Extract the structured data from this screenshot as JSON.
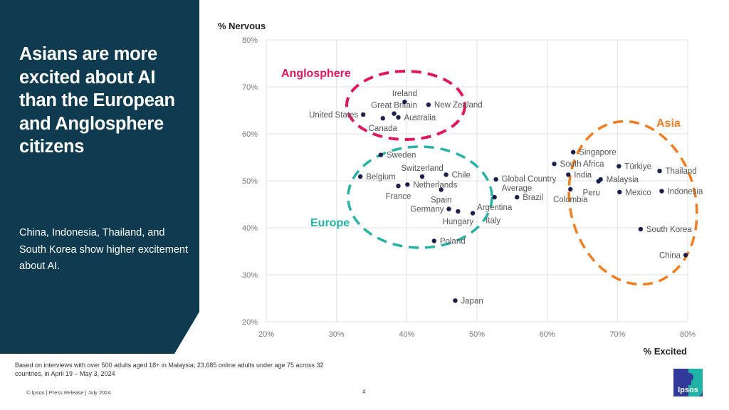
{
  "slide": {
    "title": "Asians are more excited about AI than the European and Anglosphere citizens",
    "subtitle": "China, Indonesia, Thailand, and South Korea show higher excitement about AI.",
    "note": "Based on interviews with over 500 adults aged 18+ in Malaysia; 23,685 online adults under age 75 across 32 countries, in April 19 – May 3, 2024",
    "footer": "© Ipsos | Press Release | July 2024",
    "page_number": "4",
    "logo_text": "Ipsos"
  },
  "chart_data": {
    "type": "scatter",
    "xlabel": "% Excited",
    "ylabel": "% Nervous",
    "xlim": [
      20,
      80
    ],
    "ylim": [
      20,
      80
    ],
    "xticks": [
      "20%",
      "30%",
      "40%",
      "50%",
      "60%",
      "70%",
      "80%"
    ],
    "yticks": [
      "20%",
      "30%",
      "40%",
      "50%",
      "60%",
      "70%",
      "80%"
    ],
    "grid": true,
    "point_color": "#1a1f4d",
    "groups": [
      {
        "name": "Anglosphere",
        "color": "#e0185a"
      },
      {
        "name": "Europe",
        "color": "#25b3a6"
      },
      {
        "name": "Asia",
        "color": "#f07d1f"
      }
    ],
    "points": [
      {
        "name": "United States",
        "x": 33.8,
        "y": 64.1,
        "label": "left"
      },
      {
        "name": "Canada",
        "x": 36.6,
        "y": 63.3,
        "label": "below"
      },
      {
        "name": "Great Britain",
        "x": 38.2,
        "y": 64.3,
        "label": "above"
      },
      {
        "name": "Australia",
        "x": 38.8,
        "y": 63.5,
        "label": "right"
      },
      {
        "name": "Ireland",
        "x": 39.7,
        "y": 66.8,
        "label": "above"
      },
      {
        "name": "New Zealand",
        "x": 43.1,
        "y": 66.2,
        "label": "right"
      },
      {
        "name": "Sweden",
        "x": 36.3,
        "y": 55.5,
        "label": "right"
      },
      {
        "name": "Belgium",
        "x": 33.4,
        "y": 50.9,
        "label": "right"
      },
      {
        "name": "France",
        "x": 38.8,
        "y": 48.9,
        "label": "below"
      },
      {
        "name": "Netherlands",
        "x": 40.1,
        "y": 49.2,
        "label": "right"
      },
      {
        "name": "Switzerland",
        "x": 42.2,
        "y": 50.9,
        "label": "above"
      },
      {
        "name": "Chile",
        "x": 45.6,
        "y": 51.3,
        "label": "right"
      },
      {
        "name": "Spain",
        "x": 44.9,
        "y": 48.1,
        "label": "right"
      },
      {
        "name": "Germany",
        "x": 46.0,
        "y": 44.0,
        "label": "left"
      },
      {
        "name": "Hungary",
        "x": 47.3,
        "y": 43.5,
        "label": "below"
      },
      {
        "name": "Italy",
        "x": 49.4,
        "y": 43.1,
        "label": "right"
      },
      {
        "name": "Poland",
        "x": 43.9,
        "y": 37.2,
        "label": "right"
      },
      {
        "name": "Global Country Average",
        "x": 52.7,
        "y": 50.3,
        "label": "right"
      },
      {
        "name": "Argentina",
        "x": 52.5,
        "y": 46.5,
        "label": "below"
      },
      {
        "name": "Brazil",
        "x": 55.7,
        "y": 46.5,
        "label": "right"
      },
      {
        "name": "Japan",
        "x": 46.9,
        "y": 24.5,
        "label": "right"
      },
      {
        "name": "Singapore",
        "x": 63.7,
        "y": 56.1,
        "label": "right"
      },
      {
        "name": "South Africa",
        "x": 61.0,
        "y": 53.6,
        "label": "right"
      },
      {
        "name": "India",
        "x": 63.0,
        "y": 51.3,
        "label": "right"
      },
      {
        "name": "Colombia",
        "x": 63.3,
        "y": 48.2,
        "label": "below"
      },
      {
        "name": "Malaysia",
        "x": 67.6,
        "y": 50.3,
        "label": "right"
      },
      {
        "name": "Peru",
        "x": 67.3,
        "y": 49.9,
        "label": "below-left"
      },
      {
        "name": "Türkiye",
        "x": 70.2,
        "y": 53.1,
        "label": "right"
      },
      {
        "name": "Mexico",
        "x": 70.3,
        "y": 47.6,
        "label": "right"
      },
      {
        "name": "Thailand",
        "x": 76.0,
        "y": 52.1,
        "label": "right"
      },
      {
        "name": "Indonesia",
        "x": 76.3,
        "y": 47.8,
        "label": "right"
      },
      {
        "name": "South Korea",
        "x": 73.3,
        "y": 39.7,
        "label": "right"
      },
      {
        "name": "China",
        "x": 79.7,
        "y": 34.2,
        "label": "left"
      }
    ]
  }
}
